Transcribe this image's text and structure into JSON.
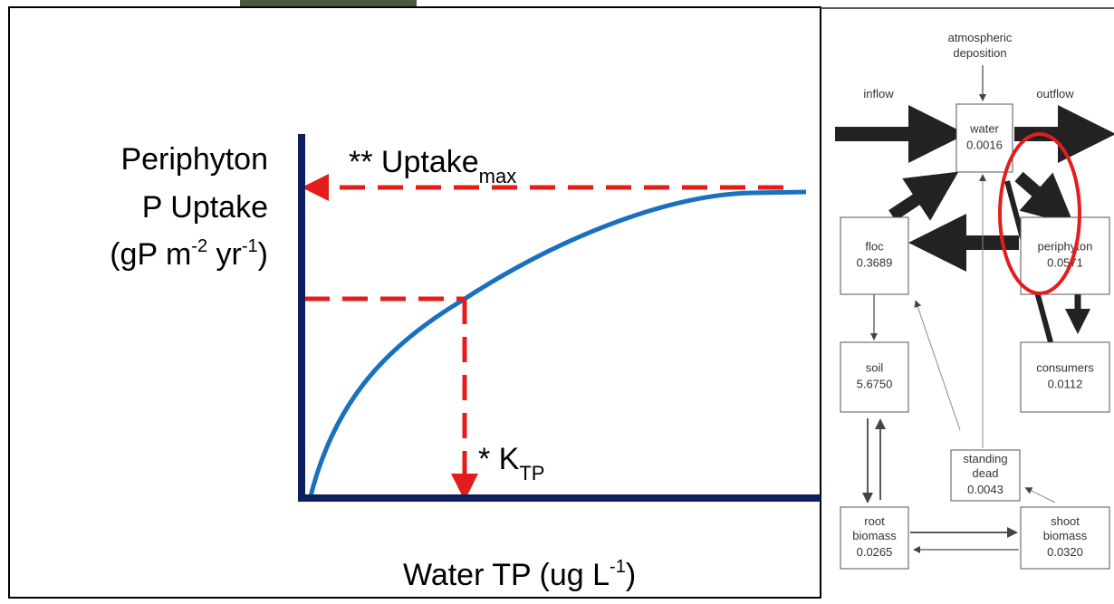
{
  "chart": {
    "y_label": [
      "Periphyton",
      "P Uptake"
    ],
    "y_units": {
      "open": "(gP m",
      "exp1": "-2",
      "mid": " yr",
      "exp2": "-1",
      "close": ")"
    },
    "uptake": {
      "text": "** Uptake",
      "sub": "max"
    },
    "ktp": {
      "text": "* K",
      "sub": "TP"
    },
    "x_label": {
      "text": "Water TP (ug L",
      "exp": "-1",
      "close": ")"
    }
  },
  "diagram": {
    "source": [
      "atmospheric",
      "deposition"
    ],
    "inflow": "inflow",
    "outflow": "outflow",
    "nodes": [
      {
        "label": [
          "water"
        ],
        "value": "0.0016"
      },
      {
        "label": [
          "floc"
        ],
        "value": "0.3689"
      },
      {
        "label": [
          "periphyton"
        ],
        "value": "0.0571"
      },
      {
        "label": [
          "soil"
        ],
        "value": "5.6750"
      },
      {
        "label": [
          "consumers"
        ],
        "value": "0.0112"
      },
      {
        "label": [
          "standing",
          "dead"
        ],
        "value": "0.0043"
      },
      {
        "label": [
          "root",
          "biomass"
        ],
        "value": "0.0265"
      },
      {
        "label": [
          "shoot",
          "biomass"
        ],
        "value": "0.0320"
      }
    ]
  }
}
